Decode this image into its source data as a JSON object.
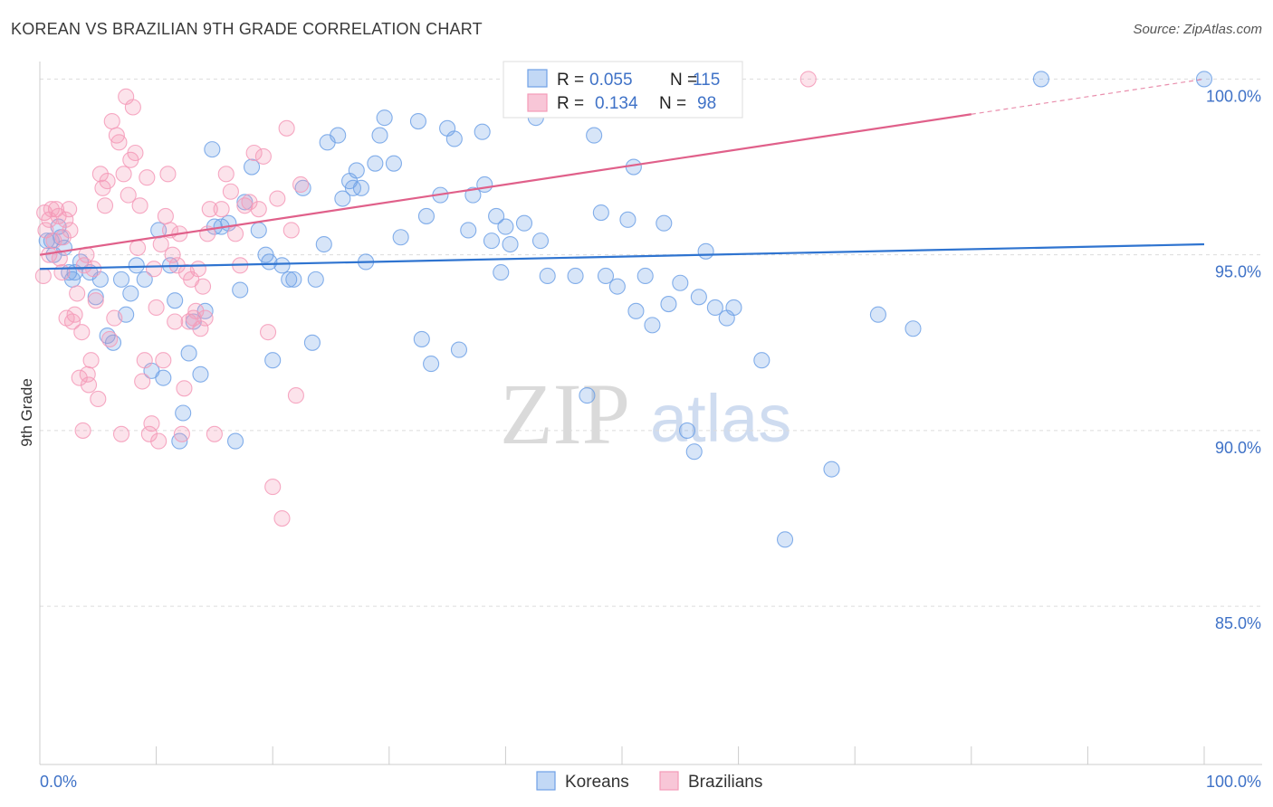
{
  "title": "KOREAN VS BRAZILIAN 9TH GRADE CORRELATION CHART",
  "source": "Source: ZipAtlas.com",
  "watermark": {
    "zip": "ZIP",
    "atlas": "atlas"
  },
  "chart_data": {
    "type": "scatter",
    "title": "KOREAN VS BRAZILIAN 9TH GRADE CORRELATION CHART",
    "xlabel": "",
    "ylabel": "9th Grade",
    "xlim": [
      0,
      100
    ],
    "ylim": [
      80.5,
      100.5
    ],
    "x_tick_labels": [
      {
        "value": 0,
        "label": "0.0%"
      },
      {
        "value": 100,
        "label": "100.0%"
      }
    ],
    "y_tick_labels": [
      {
        "value": 100,
        "label": "100.0%"
      },
      {
        "value": 95,
        "label": "95.0%"
      },
      {
        "value": 90,
        "label": "90.0%"
      },
      {
        "value": 85,
        "label": "85.0%"
      }
    ],
    "grid": true,
    "legend_position": "top-center",
    "series": [
      {
        "name": "Koreans",
        "color": "#6fa1e6",
        "line_color": "#2f74d0",
        "r": "0.055",
        "n": "115",
        "trend": {
          "x0": 0,
          "y0": 94.6,
          "x1": 100,
          "y1": 95.3,
          "x_end_solid": 100
        },
        "points": [
          [
            1.0,
            95.4
          ],
          [
            1.2,
            95.0
          ],
          [
            1.6,
            95.8
          ],
          [
            1.8,
            95.5
          ],
          [
            2.1,
            95.2
          ],
          [
            2.5,
            94.5
          ],
          [
            3.0,
            94.5
          ],
          [
            3.5,
            94.8
          ],
          [
            4.3,
            94.5
          ],
          [
            4.8,
            93.8
          ],
          [
            5.2,
            94.3
          ],
          [
            5.8,
            92.7
          ],
          [
            6.3,
            92.5
          ],
          [
            7.0,
            94.3
          ],
          [
            7.4,
            93.3
          ],
          [
            7.8,
            93.9
          ],
          [
            8.3,
            94.7
          ],
          [
            9.0,
            94.3
          ],
          [
            9.6,
            91.7
          ],
          [
            10.2,
            95.7
          ],
          [
            10.6,
            91.5
          ],
          [
            11.2,
            94.7
          ],
          [
            11.6,
            93.7
          ],
          [
            12.0,
            89.7
          ],
          [
            12.3,
            90.5
          ],
          [
            12.8,
            92.2
          ],
          [
            13.2,
            93.1
          ],
          [
            13.8,
            91.6
          ],
          [
            14.2,
            93.4
          ],
          [
            14.8,
            98.0
          ],
          [
            15.0,
            95.8
          ],
          [
            15.6,
            95.8
          ],
          [
            16.2,
            95.9
          ],
          [
            16.8,
            89.7
          ],
          [
            17.2,
            94.0
          ],
          [
            17.6,
            96.5
          ],
          [
            18.2,
            97.5
          ],
          [
            18.8,
            95.7
          ],
          [
            19.4,
            95.0
          ],
          [
            19.7,
            94.8
          ],
          [
            20.0,
            92.0
          ],
          [
            20.8,
            94.7
          ],
          [
            21.4,
            94.3
          ],
          [
            21.8,
            94.3
          ],
          [
            22.6,
            96.9
          ],
          [
            23.4,
            92.5
          ],
          [
            23.7,
            94.3
          ],
          [
            24.4,
            95.3
          ],
          [
            24.7,
            98.2
          ],
          [
            25.6,
            98.4
          ],
          [
            26.0,
            96.6
          ],
          [
            26.6,
            97.1
          ],
          [
            26.9,
            96.9
          ],
          [
            27.2,
            97.4
          ],
          [
            27.6,
            96.9
          ],
          [
            28.0,
            94.8
          ],
          [
            28.8,
            97.6
          ],
          [
            29.2,
            98.4
          ],
          [
            29.6,
            98.9
          ],
          [
            30.4,
            97.6
          ],
          [
            31.0,
            95.5
          ],
          [
            32.5,
            98.8
          ],
          [
            32.8,
            92.6
          ],
          [
            33.2,
            96.1
          ],
          [
            33.6,
            91.9
          ],
          [
            34.4,
            96.7
          ],
          [
            35.0,
            98.6
          ],
          [
            35.6,
            98.3
          ],
          [
            36.0,
            92.3
          ],
          [
            36.8,
            95.7
          ],
          [
            37.2,
            96.7
          ],
          [
            38.0,
            98.5
          ],
          [
            38.2,
            97.0
          ],
          [
            38.8,
            95.4
          ],
          [
            39.2,
            96.1
          ],
          [
            39.6,
            94.5
          ],
          [
            40.0,
            95.8
          ],
          [
            40.4,
            95.3
          ],
          [
            41.0,
            100.0
          ],
          [
            41.6,
            95.9
          ],
          [
            42.6,
            98.9
          ],
          [
            43.0,
            95.4
          ],
          [
            43.6,
            94.4
          ],
          [
            45.0,
            99.8
          ],
          [
            46.0,
            94.4
          ],
          [
            47.0,
            91.0
          ],
          [
            47.6,
            98.4
          ],
          [
            48.2,
            96.2
          ],
          [
            48.6,
            94.4
          ],
          [
            49.0,
            100.0
          ],
          [
            49.6,
            94.1
          ],
          [
            50.5,
            96.0
          ],
          [
            51.0,
            97.5
          ],
          [
            51.2,
            93.4
          ],
          [
            52.0,
            94.4
          ],
          [
            52.6,
            93.0
          ],
          [
            53.6,
            95.9
          ],
          [
            54.0,
            93.6
          ],
          [
            55.0,
            94.2
          ],
          [
            55.6,
            90.0
          ],
          [
            56.2,
            89.4
          ],
          [
            56.6,
            93.8
          ],
          [
            57.2,
            95.1
          ],
          [
            58.0,
            93.5
          ],
          [
            59.0,
            93.2
          ],
          [
            59.6,
            93.5
          ],
          [
            62.0,
            92.0
          ],
          [
            64.0,
            86.9
          ],
          [
            68.0,
            88.9
          ],
          [
            72.0,
            93.3
          ],
          [
            75.0,
            92.9
          ],
          [
            86.0,
            100.0
          ],
          [
            100.0,
            100.0
          ],
          [
            0.6,
            95.4
          ],
          [
            2.8,
            94.3
          ]
        ]
      },
      {
        "name": "Brazilians",
        "color": "#f49ab8",
        "line_color": "#e0608a",
        "r": "0.134",
        "n": "98",
        "trend": {
          "x0": 0,
          "y0": 95.0,
          "x1": 100,
          "y1": 100.0,
          "x_end_solid": 80
        },
        "points": [
          [
            0.3,
            94.4
          ],
          [
            0.4,
            96.2
          ],
          [
            0.5,
            95.7
          ],
          [
            0.8,
            96.0
          ],
          [
            0.8,
            95.0
          ],
          [
            1.0,
            96.3
          ],
          [
            1.2,
            95.4
          ],
          [
            1.4,
            96.3
          ],
          [
            1.6,
            96.1
          ],
          [
            1.7,
            94.9
          ],
          [
            1.9,
            94.5
          ],
          [
            2.0,
            95.5
          ],
          [
            2.2,
            96.0
          ],
          [
            2.3,
            93.2
          ],
          [
            2.5,
            96.3
          ],
          [
            2.6,
            95.7
          ],
          [
            2.8,
            93.1
          ],
          [
            3.0,
            93.3
          ],
          [
            3.2,
            93.9
          ],
          [
            3.4,
            91.5
          ],
          [
            3.6,
            92.8
          ],
          [
            3.7,
            90.0
          ],
          [
            3.8,
            94.7
          ],
          [
            4.0,
            95.0
          ],
          [
            4.1,
            91.6
          ],
          [
            4.2,
            91.3
          ],
          [
            4.4,
            92.0
          ],
          [
            4.6,
            94.6
          ],
          [
            4.8,
            93.7
          ],
          [
            5.0,
            90.9
          ],
          [
            5.2,
            97.3
          ],
          [
            5.4,
            96.9
          ],
          [
            5.6,
            96.4
          ],
          [
            5.8,
            97.1
          ],
          [
            6.0,
            92.6
          ],
          [
            6.2,
            98.8
          ],
          [
            6.4,
            93.2
          ],
          [
            6.6,
            98.4
          ],
          [
            6.8,
            98.2
          ],
          [
            7.0,
            89.9
          ],
          [
            7.2,
            97.3
          ],
          [
            7.4,
            99.5
          ],
          [
            7.6,
            96.7
          ],
          [
            7.8,
            97.7
          ],
          [
            8.0,
            99.2
          ],
          [
            8.2,
            97.9
          ],
          [
            8.4,
            95.2
          ],
          [
            8.6,
            96.4
          ],
          [
            8.8,
            91.4
          ],
          [
            9.0,
            92.0
          ],
          [
            9.2,
            97.2
          ],
          [
            9.4,
            89.9
          ],
          [
            9.6,
            90.2
          ],
          [
            9.8,
            94.6
          ],
          [
            10.0,
            93.5
          ],
          [
            10.2,
            89.7
          ],
          [
            10.4,
            95.3
          ],
          [
            10.6,
            92.0
          ],
          [
            10.8,
            96.1
          ],
          [
            11.0,
            97.3
          ],
          [
            11.2,
            95.7
          ],
          [
            11.4,
            95.0
          ],
          [
            11.6,
            93.1
          ],
          [
            11.8,
            94.7
          ],
          [
            12.0,
            95.6
          ],
          [
            12.2,
            89.9
          ],
          [
            12.4,
            91.2
          ],
          [
            12.6,
            94.5
          ],
          [
            12.8,
            93.1
          ],
          [
            13.0,
            94.3
          ],
          [
            13.2,
            93.2
          ],
          [
            13.4,
            93.4
          ],
          [
            13.6,
            94.6
          ],
          [
            13.8,
            92.9
          ],
          [
            14.0,
            94.1
          ],
          [
            14.2,
            93.2
          ],
          [
            14.4,
            95.6
          ],
          [
            14.6,
            96.3
          ],
          [
            15.0,
            89.9
          ],
          [
            15.6,
            96.3
          ],
          [
            16.0,
            97.3
          ],
          [
            16.4,
            96.8
          ],
          [
            16.8,
            95.6
          ],
          [
            17.2,
            94.7
          ],
          [
            17.6,
            96.4
          ],
          [
            18.0,
            96.5
          ],
          [
            18.4,
            97.9
          ],
          [
            18.8,
            96.3
          ],
          [
            19.2,
            97.8
          ],
          [
            19.6,
            92.8
          ],
          [
            20.0,
            88.4
          ],
          [
            20.4,
            96.6
          ],
          [
            20.8,
            87.5
          ],
          [
            21.2,
            98.6
          ],
          [
            21.6,
            95.7
          ],
          [
            22.0,
            91.0
          ],
          [
            66.0,
            100.0
          ],
          [
            22.4,
            97.0
          ]
        ]
      }
    ]
  },
  "legend": {
    "rows": [
      {
        "r_label": "R =",
        "r_value": "0.055",
        "n_label": "N =",
        "n_value": "115"
      },
      {
        "r_label": "R =",
        "r_value": "0.134",
        "n_label": "N =",
        "n_value": "98"
      }
    ]
  },
  "bottom_legend": [
    "Koreans",
    "Brazilians"
  ]
}
